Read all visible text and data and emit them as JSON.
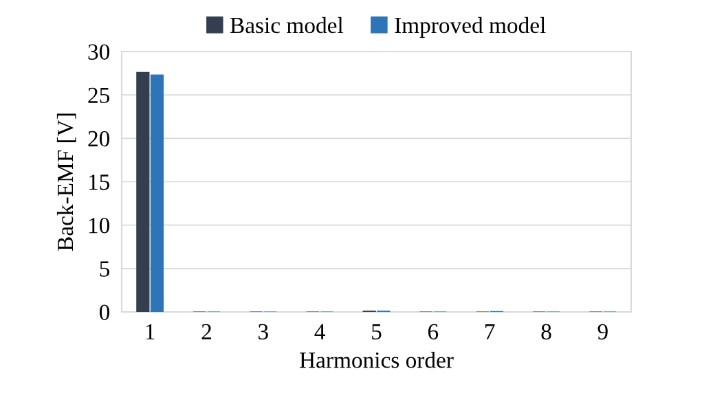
{
  "chart_data": {
    "type": "bar",
    "xlabel": "Harmonics order",
    "ylabel": "Back-EMF [V]",
    "categories": [
      "1",
      "2",
      "3",
      "4",
      "5",
      "6",
      "7",
      "8",
      "9"
    ],
    "series": [
      {
        "name": "Basic model",
        "color": "#333f50",
        "values": [
          27.6,
          0,
          0,
          0,
          0.1,
          0,
          0,
          0,
          0
        ]
      },
      {
        "name": "Improved model",
        "color": "#2e75b6",
        "values": [
          27.3,
          0,
          0,
          0,
          0.1,
          0,
          0.05,
          0,
          0
        ]
      }
    ],
    "ylim": [
      0,
      30
    ],
    "yticks": [
      0,
      5,
      10,
      15,
      20,
      25,
      30
    ],
    "grid": "y",
    "legend": "top"
  }
}
